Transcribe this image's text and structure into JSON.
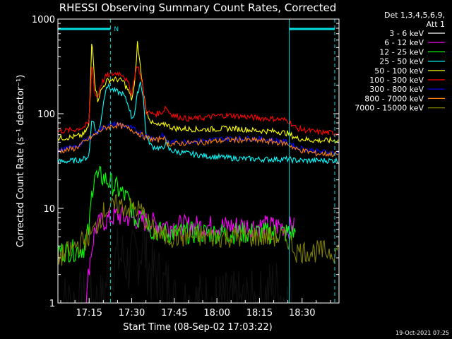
{
  "chart_data": {
    "type": "line",
    "title": "RHESSI Observing Summary Count Rates, Corrected",
    "xlabel": "Start Time (08-Sep-02 17:03:22)",
    "ylabel": "Corrected Count Rate (s⁻¹ detector⁻¹)",
    "yscale": "log",
    "ylim": [
      1,
      1000
    ],
    "xlim_minutes": [
      -11,
      88
    ],
    "x_tick_labels": [
      "17:15",
      "17:30",
      "17:45",
      "18:00",
      "18:15",
      "18:30"
    ],
    "x_tick_minutes": [
      0,
      15,
      30,
      45,
      60,
      75
    ],
    "y_tick_labels": [
      "1",
      "10",
      "100",
      "1000"
    ],
    "y_tick_values": [
      1,
      10,
      100,
      1000
    ],
    "legend_header": [
      "Det 1,3,4,5,6,9,",
      "Att 1"
    ],
    "legend_position": "right",
    "annotations": {
      "night_marker": "N",
      "night_intervals_minutes": [
        [
          -11,
          7.5
        ],
        [
          70.5,
          86.5
        ]
      ],
      "saa_lines_minutes": [
        7.5,
        86.5
      ],
      "night_vertical_minutes": [
        70.5
      ],
      "timestamp": "19-Oct-2021 07:25"
    },
    "series": [
      {
        "name": "3 - 6 keV",
        "color": "#000000",
        "x": [
          -11,
          -5,
          0,
          5,
          7,
          10,
          12,
          14,
          16,
          18,
          19,
          20,
          22,
          24,
          26,
          28,
          30,
          40,
          50,
          60,
          65,
          70,
          73
        ],
        "y": [
          1,
          1,
          1,
          1,
          2.5,
          3,
          3,
          2.5,
          3,
          3.5,
          5,
          3,
          2,
          2,
          1.5,
          1.5,
          1,
          1,
          1,
          1,
          1.5,
          1,
          1
        ]
      },
      {
        "name": "6 - 12 keV",
        "color": "#ff00ff",
        "x": [
          -1,
          0,
          2,
          4,
          6,
          8,
          10,
          12,
          14,
          16,
          18,
          20,
          24,
          30,
          40,
          50,
          60,
          67,
          72.5
        ],
        "y": [
          1,
          2.5,
          6,
          7,
          7.5,
          8,
          8.5,
          8,
          8,
          7.8,
          7.5,
          7.2,
          6.8,
          6.5,
          6.5,
          6.5,
          6.5,
          6.5,
          6.2
        ]
      },
      {
        "name": "12 - 25 keV",
        "color": "#00ff00",
        "x": [
          -11,
          -5,
          -2,
          0,
          1,
          2,
          3,
          4,
          6,
          8,
          10,
          12,
          14,
          15,
          16,
          17,
          18,
          19,
          20,
          22,
          26,
          30,
          40,
          50,
          60,
          66,
          70,
          73
        ],
        "y": [
          3.5,
          3.6,
          3.8,
          6,
          15,
          25,
          20,
          22,
          20,
          18,
          16,
          14,
          12,
          10,
          8,
          7,
          9,
          12,
          8,
          6,
          5.5,
          5.5,
          5.5,
          5.5,
          5.5,
          5.5,
          5.5,
          5.5
        ]
      },
      {
        "name": "25 - 50 keV",
        "color": "#00ffff",
        "x": [
          -11,
          -5,
          -2,
          0,
          1,
          2,
          3,
          4,
          6,
          8,
          10,
          12,
          14,
          15,
          16,
          17,
          18,
          19,
          20,
          22,
          24,
          26,
          27,
          28,
          30,
          40,
          50,
          60,
          66,
          70,
          73,
          80,
          88
        ],
        "y": [
          31,
          32,
          33,
          36,
          95,
          70,
          60,
          80,
          200,
          180,
          170,
          160,
          120,
          90,
          100,
          160,
          220,
          160,
          60,
          45,
          44,
          42,
          52,
          42,
          40,
          36,
          34,
          33,
          33,
          33,
          32,
          32,
          32
        ]
      },
      {
        "name": "50 - 100 keV",
        "color": "#ffff00",
        "x": [
          -11,
          -5,
          -2,
          0,
          1,
          2,
          3,
          4,
          6,
          8,
          10,
          12,
          14,
          15,
          16,
          17,
          18,
          19,
          20,
          22,
          24,
          26,
          27,
          28,
          30,
          40,
          50,
          60,
          66,
          70,
          73,
          80,
          88
        ],
        "y": [
          55,
          57,
          60,
          75,
          680,
          210,
          140,
          170,
          220,
          230,
          230,
          220,
          170,
          140,
          200,
          560,
          320,
          180,
          110,
          80,
          75,
          75,
          80,
          74,
          70,
          68,
          70,
          66,
          65,
          62,
          55,
          52,
          52
        ]
      },
      {
        "name": "100 - 300 keV",
        "color": "#ff0000",
        "x": [
          -11,
          -5,
          -2,
          0,
          1,
          2,
          3,
          4,
          6,
          8,
          10,
          12,
          14,
          15,
          16,
          17,
          18,
          19,
          20,
          22,
          24,
          26,
          27,
          28,
          30,
          35,
          40,
          45,
          50,
          55,
          60,
          66,
          70,
          73,
          80,
          88
        ],
        "y": [
          65,
          68,
          72,
          80,
          360,
          160,
          150,
          200,
          250,
          260,
          270,
          260,
          200,
          160,
          250,
          330,
          260,
          180,
          105,
          100,
          100,
          105,
          120,
          105,
          95,
          88,
          90,
          95,
          96,
          93,
          90,
          88,
          85,
          70,
          64,
          62
        ]
      },
      {
        "name": "300 - 800 keV",
        "color": "#0000ff",
        "x": [
          -11,
          -5,
          0,
          5,
          10,
          15,
          20,
          24,
          26,
          27,
          28,
          30,
          40,
          50,
          60,
          66,
          70,
          73,
          80,
          88
        ],
        "y": [
          41,
          44,
          55,
          72,
          78,
          70,
          58,
          54,
          62,
          52,
          50,
          50,
          52,
          55,
          54,
          52,
          50,
          44,
          40,
          38
        ]
      },
      {
        "name": "800 - 7000 keV",
        "color": "#ff8000",
        "x": [
          -11,
          -5,
          0,
          5,
          10,
          15,
          20,
          24,
          26,
          27,
          28,
          30,
          40,
          50,
          60,
          66,
          70,
          73,
          80,
          88
        ],
        "y": [
          40,
          43,
          54,
          70,
          76,
          68,
          56,
          52,
          58,
          50,
          48,
          48,
          50,
          53,
          52,
          50,
          48,
          42,
          38,
          37
        ]
      },
      {
        "name": "7000 - 15000 keV",
        "color": "#808000",
        "x": [
          -11,
          -7,
          -5,
          -2,
          0,
          2,
          4,
          6,
          8,
          10,
          12,
          14,
          16,
          18,
          19,
          20,
          22,
          24,
          26,
          30,
          40,
          50,
          60,
          66,
          70,
          73,
          80,
          88
        ],
        "y": [
          3,
          3.5,
          4,
          4.5,
          5,
          6,
          8,
          10,
          10,
          11,
          10.5,
          10,
          10,
          9.5,
          9,
          7.5,
          6,
          5.5,
          5,
          5,
          5,
          5,
          5,
          5,
          4.8,
          3.5,
          3.5,
          3.5
        ]
      }
    ]
  }
}
